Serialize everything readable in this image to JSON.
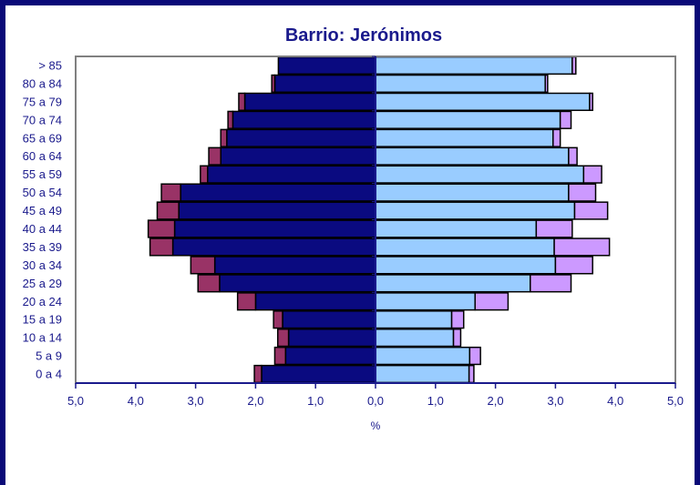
{
  "chart_data": {
    "type": "bar",
    "subtype": "population-pyramid",
    "title": "Barrio: Jerónimos",
    "xlabel": "%",
    "xlim": [
      -5,
      5
    ],
    "x_ticks": [
      "5,0",
      "4,0",
      "3,0",
      "2,0",
      "1,0",
      "0,0",
      "1,0",
      "2,0",
      "3,0",
      "4,0",
      "5,0"
    ],
    "x_tick_values": [
      -5,
      -4,
      -3,
      -2,
      -1,
      0,
      1,
      2,
      3,
      4,
      5
    ],
    "categories": [
      "> 85",
      "80 a 84",
      "75 a 79",
      "70 a 74",
      "65 a 69",
      "60 a 64",
      "55 a 59",
      "50 a 54",
      "45 a 49",
      "40 a 44",
      "35 a 39",
      "30 a 34",
      "25 a 29",
      "20 a 24",
      "15 a 19",
      "10 a 14",
      "5 a 9",
      "0 a 4"
    ],
    "series": [
      {
        "side": "left",
        "color": "#0a0a80",
        "values": [
          1.62,
          1.68,
          2.18,
          2.38,
          2.48,
          2.58,
          2.8,
          3.25,
          3.28,
          3.35,
          3.38,
          2.68,
          2.6,
          2.0,
          1.55,
          1.45,
          1.5,
          1.9
        ]
      },
      {
        "side": "left",
        "color": "#993366",
        "values": [
          0.0,
          0.05,
          0.1,
          0.08,
          0.1,
          0.2,
          0.12,
          0.32,
          0.36,
          0.44,
          0.38,
          0.4,
          0.36,
          0.3,
          0.15,
          0.18,
          0.18,
          0.12
        ]
      },
      {
        "side": "right",
        "color": "#99ccff",
        "values": [
          3.28,
          2.83,
          3.57,
          3.08,
          2.96,
          3.22,
          3.47,
          3.22,
          3.32,
          2.68,
          2.98,
          3.0,
          2.58,
          1.66,
          1.27,
          1.3,
          1.57,
          1.56
        ]
      },
      {
        "side": "right",
        "color": "#cc99ff",
        "values": [
          0.06,
          0.04,
          0.05,
          0.18,
          0.12,
          0.14,
          0.3,
          0.45,
          0.55,
          0.6,
          0.92,
          0.62,
          0.68,
          0.55,
          0.2,
          0.12,
          0.18,
          0.08
        ]
      }
    ],
    "grid": false,
    "legend": "none"
  }
}
